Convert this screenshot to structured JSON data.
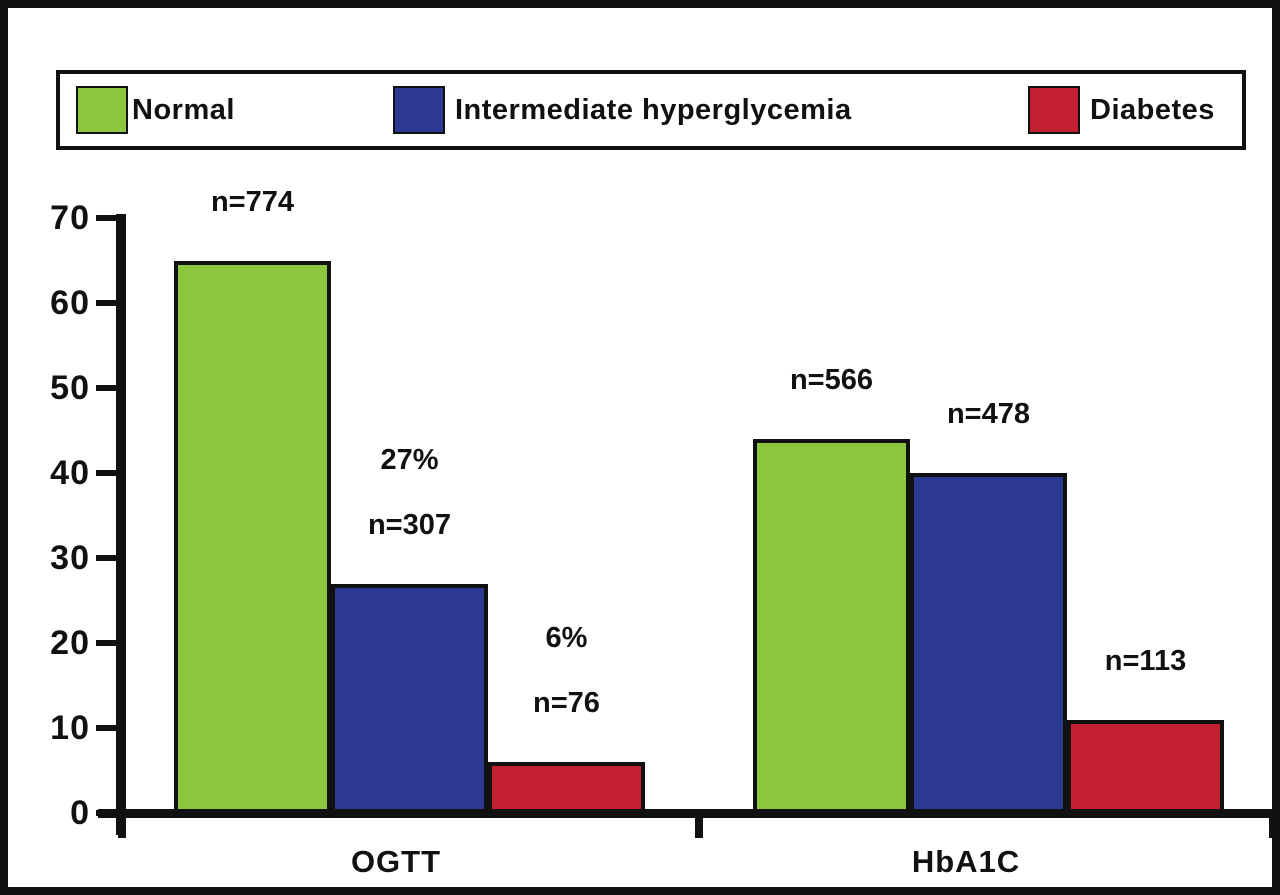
{
  "chart_data": {
    "type": "bar",
    "title": "",
    "xlabel": "",
    "ylabel": "",
    "categories": [
      "OGTT",
      "HbA1C"
    ],
    "series": [
      {
        "name": "Normal",
        "color": "#8DC63F",
        "values": [
          65,
          44
        ],
        "bar_labels": [
          [
            "n=774"
          ],
          [
            "n=566"
          ]
        ]
      },
      {
        "name": "Intermediate hyperglycemia",
        "color": "#2B3990",
        "values": [
          27,
          40
        ],
        "bar_labels": [
          [
            "27%",
            "n=307"
          ],
          [
            "n=478"
          ]
        ]
      },
      {
        "name": "Diabetes",
        "color": "#C41F30",
        "values": [
          6,
          11
        ],
        "bar_labels": [
          [
            "6%",
            "n=76"
          ],
          [
            "n=113"
          ]
        ]
      }
    ],
    "ylim": [
      0,
      70
    ],
    "yticks": [
      0,
      10,
      20,
      30,
      40,
      50,
      60,
      70
    ],
    "legend_position": "top",
    "grid": false,
    "axis_color": "#111111"
  }
}
